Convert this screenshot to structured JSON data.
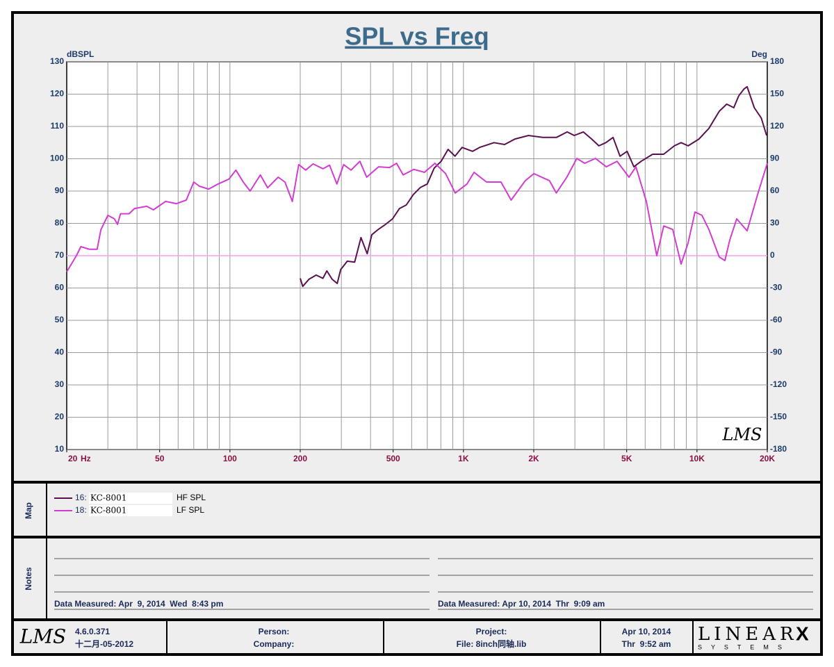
{
  "chart_data": {
    "type": "line",
    "title": "SPL vs Freq",
    "ylabel": "dBSPL",
    "y2label": "Deg",
    "x_unit": "Hz",
    "annotation": "LMS",
    "log_x": true,
    "grid": true,
    "zero_line_color": "#f0a0f0",
    "xlim": [
      20,
      20000
    ],
    "xticks": [
      20,
      50,
      100,
      200,
      500,
      {
        "value": 1000,
        "label": "1K"
      },
      {
        "value": 2000,
        "label": "2K"
      },
      {
        "value": 5000,
        "label": "5K"
      },
      {
        "value": 10000,
        "label": "10K"
      },
      {
        "value": 20000,
        "label": "20K"
      }
    ],
    "xgrid": [
      30,
      40,
      50,
      60,
      70,
      80,
      90,
      100,
      200,
      300,
      400,
      500,
      600,
      700,
      800,
      900,
      1000,
      2000,
      3000,
      4000,
      5000,
      6000,
      7000,
      8000,
      9000,
      10000
    ],
    "ylim": [
      10,
      130
    ],
    "yticks": [
      10,
      20,
      30,
      40,
      50,
      60,
      70,
      80,
      90,
      100,
      110,
      120,
      130
    ],
    "y2lim": [
      -180,
      180
    ],
    "y2ticks": [
      -180,
      -150,
      -120,
      -90,
      -60,
      -30,
      0,
      30,
      60,
      90,
      120,
      150,
      180
    ],
    "series": [
      {
        "name": "HF SPL",
        "color": "#5a1050",
        "x": [
          200,
          205,
          218,
          234,
          250,
          260,
          274,
          288,
          298,
          318,
          342,
          364,
          387,
          405,
          433,
          464,
          497,
          532,
          569,
          610,
          653,
          700,
          749,
          802,
          859,
          920,
          986,
          1094,
          1172,
          1351,
          1500,
          1660,
          1900,
          2186,
          2500,
          2780,
          2980,
          3260,
          3540,
          3800,
          4070,
          4370,
          4680,
          5020,
          5370,
          5760,
          6460,
          7200,
          8000,
          8550,
          9160,
          10200,
          11250,
          12460,
          13400,
          14370,
          15100,
          15900,
          16390,
          17600,
          18850,
          19860
        ],
        "values": [
          63,
          60.5,
          62.7,
          64,
          63,
          65.3,
          62.7,
          61.4,
          65.7,
          68.3,
          68,
          75.6,
          70.6,
          76.5,
          78.2,
          79.7,
          81.4,
          84.6,
          85.7,
          88.9,
          91.1,
          92.2,
          97.1,
          99.2,
          102.9,
          100.8,
          103.5,
          102.3,
          103.5,
          105,
          104.4,
          106.1,
          107.2,
          106.6,
          106.6,
          108.3,
          107.2,
          108.3,
          106.1,
          104,
          105,
          106.6,
          100.8,
          102.3,
          97.5,
          99.2,
          101.4,
          101.4,
          104,
          105,
          104,
          106.1,
          109.4,
          114.7,
          116.9,
          115.8,
          119.5,
          121.6,
          122.3,
          115.8,
          112.6,
          107.2
        ]
      },
      {
        "name": "LF SPL",
        "color": "#d23cd2",
        "x": [
          20,
          22,
          23,
          25,
          27,
          28,
          30,
          32,
          33,
          34,
          37,
          39,
          44,
          47,
          53,
          59,
          65,
          70,
          74,
          81,
          89,
          99,
          106,
          114,
          122,
          135,
          145,
          161,
          172,
          185,
          197,
          211,
          227,
          250,
          267,
          287,
          307,
          330,
          360,
          385,
          433,
          482,
          517,
          552,
          613,
          681,
          755,
          839,
          922,
          1035,
          1110,
          1255,
          1448,
          1600,
          1840,
          2003,
          2336,
          2497,
          2771,
          3058,
          3303,
          3675,
          4088,
          4549,
          5114,
          5476,
          6070,
          6727,
          7203,
          7876,
          8551,
          9158,
          9807,
          10500,
          11250,
          12460,
          13170,
          13820,
          14790,
          16390,
          18170,
          20000
        ],
        "values": [
          65,
          70,
          72.8,
          72,
          72,
          78,
          82.5,
          81.4,
          79.7,
          83,
          83,
          84.6,
          85.3,
          84.2,
          86.8,
          86.1,
          87.2,
          92.8,
          91.5,
          90.6,
          92.2,
          93.7,
          96.5,
          92.8,
          90,
          95,
          91,
          94.3,
          92.8,
          86.8,
          98.2,
          96.5,
          98.4,
          96.9,
          98,
          92.2,
          98.2,
          96.5,
          99.2,
          94.3,
          97.5,
          97.3,
          98.6,
          95,
          96.7,
          95.8,
          98.6,
          95.4,
          89.4,
          92.2,
          95.8,
          92.8,
          92.8,
          87.2,
          93.2,
          95.4,
          93.2,
          89.4,
          94.3,
          100.1,
          98.6,
          100.1,
          97.5,
          99.2,
          94.3,
          97.5,
          86.8,
          70,
          79.2,
          78.1,
          67.4,
          73.9,
          83.5,
          82.5,
          78.1,
          69.6,
          68.5,
          74.9,
          81.4,
          77.7,
          88.9,
          98.6
        ]
      }
    ]
  },
  "map": {
    "title": "Map",
    "entries": [
      {
        "id": "16:",
        "name": "KC-8001"
      },
      {
        "id": "18:",
        "name": "KC-8001"
      }
    ]
  },
  "notes": {
    "title": "Notes",
    "left": "Data Measured: Apr  9, 2014  Wed  8:43 pm",
    "right": "Data Measured: Apr 10, 2014  Thr  9:09 am"
  },
  "footer": {
    "logo": "LMS",
    "version": "4.6.0.371",
    "build_date": "十二月-05-2012",
    "person": "Person:",
    "company": "Company:",
    "project": "Project:",
    "file": "File: 8inch同轴.lib",
    "date": "Apr 10, 2014",
    "time": "Thr  9:52 am",
    "brand": "LINEAR",
    "brand_x": "X",
    "brand_sub": "S Y S T E M S"
  }
}
